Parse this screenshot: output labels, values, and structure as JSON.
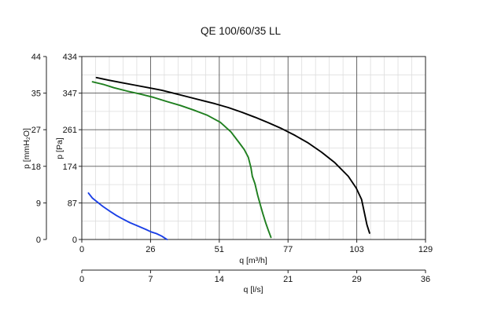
{
  "chart_data": {
    "type": "line",
    "title": "QE 100/60/35 LL",
    "xlabel": "q [m³/h]",
    "ylabel": "p [Pa]",
    "ylabel_secondary": "p [mmH₂O]",
    "xlabel_secondary": "q [l/s]",
    "xlim": [
      0,
      129
    ],
    "ylim": [
      0,
      434
    ],
    "x_ticks": [
      "0",
      "26",
      "51",
      "77",
      "103",
      "129"
    ],
    "y_ticks": [
      "0",
      "87",
      "174",
      "261",
      "347",
      "434"
    ],
    "y_ticks_secondary": [
      "0",
      "9",
      "18",
      "27",
      "35",
      "44"
    ],
    "x_ticks_secondary": [
      "0",
      "7",
      "14",
      "21",
      "29",
      "36"
    ],
    "x_secondary_lim": [
      0,
      36
    ],
    "grid": true,
    "series": [
      {
        "color": "#000000",
        "x": [
          5.5,
          10,
          15,
          20,
          25,
          30,
          35,
          40,
          45,
          50,
          55,
          60,
          65,
          70,
          75,
          80,
          85,
          90,
          95,
          100,
          103,
          105,
          106,
          107,
          108
        ],
        "y": [
          384,
          378,
          372,
          366,
          360,
          354,
          346,
          338,
          330,
          322,
          313,
          302,
          290,
          277,
          263,
          247,
          229,
          207,
          182,
          150,
          122,
          95,
          65,
          35,
          15
        ]
      },
      {
        "color": "#1f7f1f",
        "x": [
          4,
          8,
          12,
          17,
          22,
          27,
          32,
          37,
          42,
          47,
          52,
          56,
          59,
          61,
          62.5,
          63.5,
          64,
          65,
          66,
          67,
          68,
          69,
          70,
          71
        ],
        "y": [
          374,
          368,
          360,
          352,
          345,
          337,
          327,
          318,
          307,
          295,
          278,
          255,
          230,
          213,
          195,
          170,
          150,
          132,
          105,
          82,
          60,
          40,
          22,
          5
        ]
      },
      {
        "color": "#1a3fe6",
        "x": [
          2.5,
          4,
          6,
          8,
          11,
          13,
          15,
          18,
          21,
          24,
          26,
          28,
          30,
          31,
          32
        ],
        "y": [
          110,
          98,
          88,
          78,
          65,
          57,
          50,
          40,
          32,
          24,
          18,
          14,
          8,
          4,
          0
        ]
      }
    ]
  }
}
